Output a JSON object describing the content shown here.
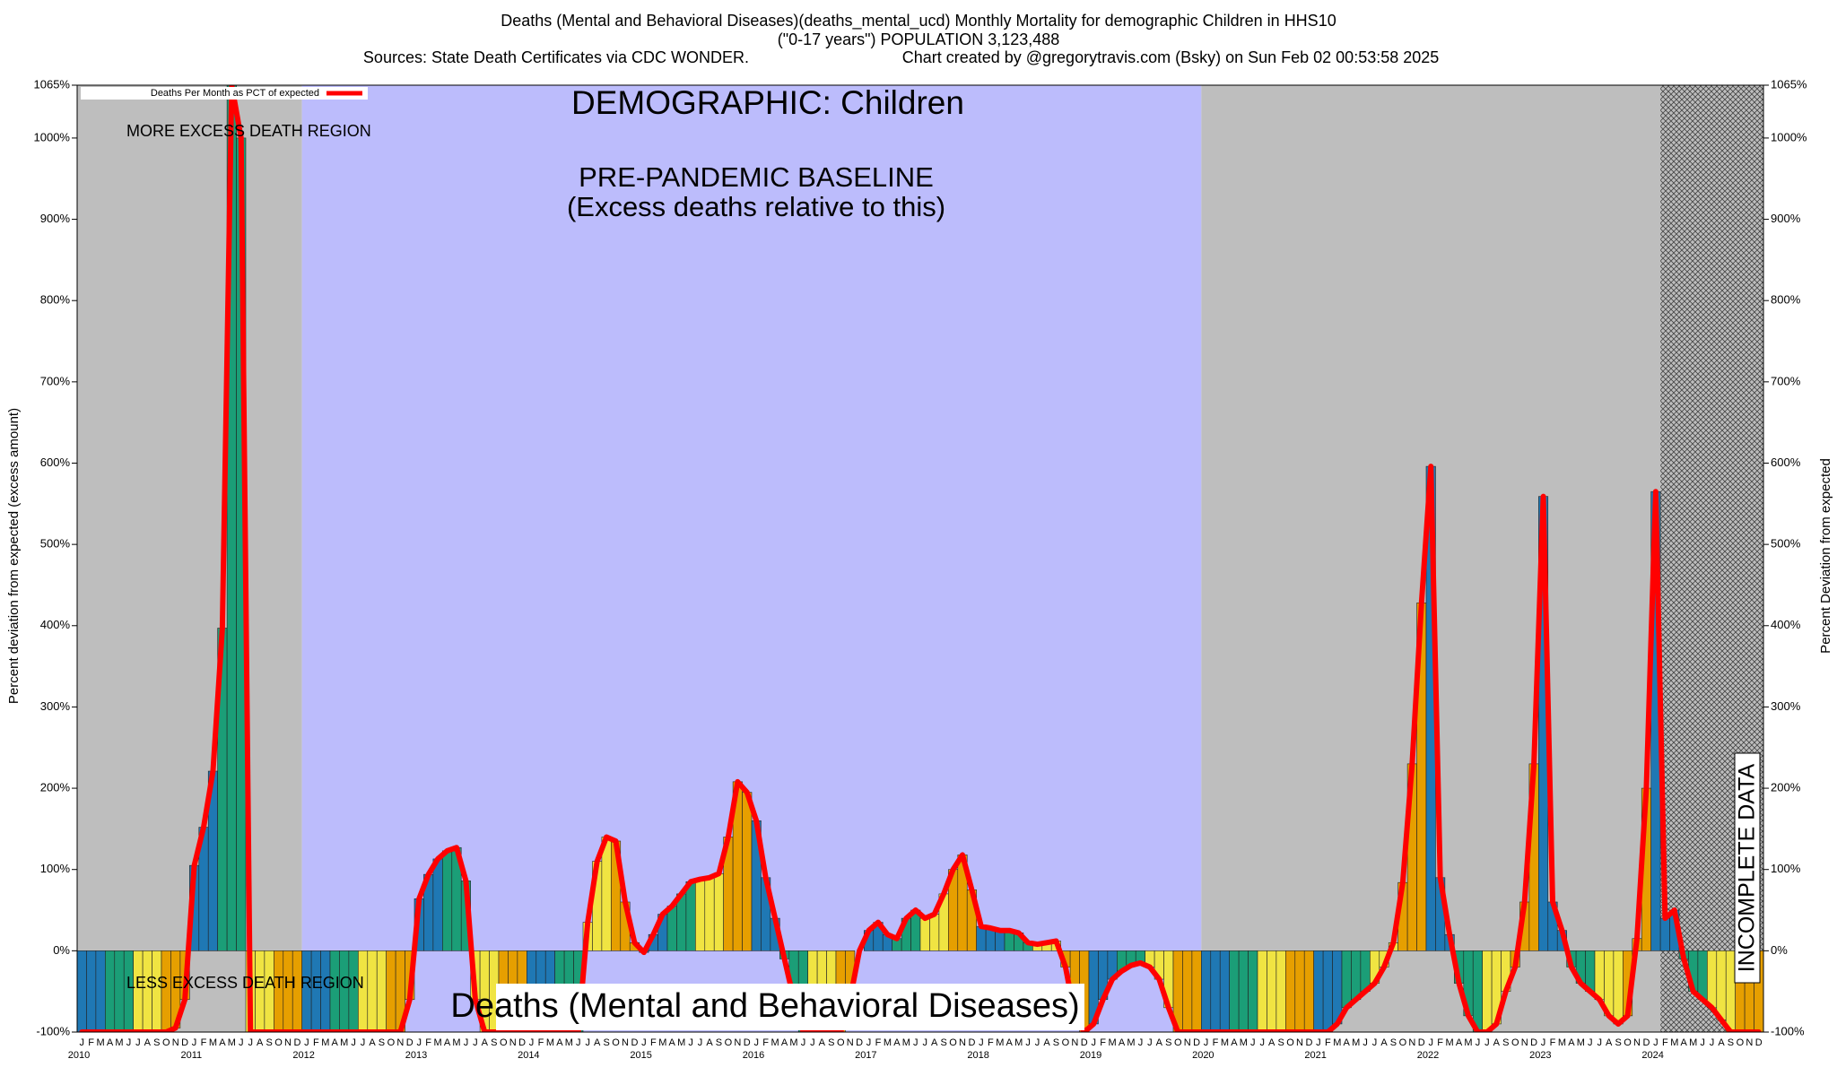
{
  "chart_data": {
    "type": "bar-line",
    "title": "Deaths (Mental and Behavioral Diseases)(deaths_mental_ucd) Monthly Mortality for demographic Children in HHS10",
    "subtitle": "(\"0-17 years\") POPULATION 3,123,488",
    "source": "Sources: State Death Certificates via CDC WONDER.",
    "credit": "Chart created by @gregorytravis.com (Bsky) on Sun Feb 02 00:53:58 2025",
    "y_label": "Percent deviation from expected (excess amount)",
    "y2_label": "Percent Deviation from expected",
    "annotations": {
      "demographic": "DEMOGRAPHIC: Children",
      "more": "MORE EXCESS DEATH REGION",
      "less": "LESS EXCESS DEATH REGION",
      "baseline": "PRE-PANDEMIC BASELINE",
      "baseline_note": "(Excess deaths relative to this)",
      "cause": "Deaths (Mental and Behavioral Diseases)",
      "incomplete": "INCOMPLETE DATA"
    },
    "categories": [
      "J",
      "F",
      "M",
      "A",
      "M",
      "J",
      "J",
      "A",
      "S",
      "O",
      "N",
      "D",
      "J",
      "F",
      "M",
      "A",
      "M",
      "J",
      "J",
      "A",
      "S",
      "O",
      "N",
      "D",
      "J",
      "F",
      "M",
      "A",
      "M",
      "J",
      "J",
      "A",
      "S",
      "O",
      "N",
      "D",
      "J",
      "F",
      "M",
      "A",
      "M",
      "J",
      "J",
      "A",
      "S",
      "O",
      "N",
      "D",
      "J",
      "F",
      "M",
      "A",
      "M",
      "J",
      "J",
      "A",
      "S",
      "O",
      "N",
      "D",
      "J",
      "F",
      "M",
      "A",
      "M",
      "J",
      "J",
      "A",
      "S",
      "O",
      "N",
      "D",
      "J",
      "F",
      "M",
      "A",
      "M",
      "J",
      "J",
      "A",
      "S",
      "O",
      "N",
      "D",
      "J",
      "F",
      "M",
      "A",
      "M",
      "J",
      "J",
      "A",
      "S",
      "O",
      "N",
      "D",
      "J",
      "F",
      "M",
      "A",
      "M",
      "J",
      "J",
      "A",
      "S",
      "O",
      "N",
      "D",
      "J",
      "F",
      "M",
      "A",
      "M",
      "J",
      "J",
      "A",
      "S",
      "O",
      "N",
      "D",
      "J",
      "F",
      "M",
      "A",
      "M",
      "J",
      "J",
      "A",
      "S",
      "O",
      "N",
      "D",
      "J",
      "F",
      "M",
      "A",
      "M",
      "J",
      "J",
      "A",
      "S",
      "O",
      "N",
      "D",
      "J",
      "F",
      "M",
      "A",
      "M",
      "J",
      "J",
      "A",
      "S",
      "O",
      "N",
      "D",
      "J",
      "F",
      "M",
      "A",
      "M",
      "J",
      "J",
      "A",
      "S",
      "O",
      "N",
      "D",
      "J",
      "F",
      "M",
      "A",
      "M",
      "J",
      "J",
      "A",
      "S",
      "O",
      "N",
      "D"
    ],
    "years": [
      "2010",
      "2011",
      "2012",
      "2013",
      "2014",
      "2015",
      "2016",
      "2017",
      "2018",
      "2019",
      "2020",
      "2021",
      "2022",
      "2023",
      "2024"
    ],
    "series": [
      {
        "name": "Deaths Per Month as PCT of expected",
        "color": "#ff0000",
        "values": [
          -100,
          -100,
          -100,
          -100,
          -100,
          -100,
          -100,
          -100,
          -100,
          -100,
          -95,
          -60,
          105,
          152,
          221,
          397,
          1065,
          1000,
          -100,
          -100,
          -100,
          -100,
          -100,
          -100,
          -100,
          -100,
          -100,
          -100,
          -100,
          -100,
          -100,
          -100,
          -100,
          -100,
          -100,
          -60,
          64,
          94,
          113,
          123,
          127,
          86,
          -60,
          -100,
          -100,
          -100,
          -100,
          -100,
          -100,
          -100,
          -100,
          -100,
          -100,
          -100,
          35,
          110,
          140,
          135,
          60,
          10,
          -2,
          20,
          45,
          55,
          70,
          85,
          88,
          90,
          95,
          140,
          208,
          195,
          160,
          90,
          40,
          -10,
          -60,
          -100,
          -100,
          -100,
          -100,
          -100,
          -60,
          0,
          25,
          35,
          20,
          15,
          40,
          50,
          40,
          45,
          70,
          100,
          118,
          75,
          30,
          28,
          25,
          25,
          22,
          10,
          8,
          10,
          12,
          -20,
          -80,
          -100,
          -90,
          -60,
          -35,
          -25,
          -18,
          -15,
          -20,
          -35,
          -70,
          -100,
          -100,
          -100,
          -100,
          -100,
          -100,
          -100,
          -100,
          -100,
          -100,
          -100,
          -100,
          -100,
          -100,
          -100,
          -100,
          -100,
          -90,
          -70,
          -60,
          -50,
          -40,
          -20,
          10,
          84,
          230,
          428,
          596,
          90,
          20,
          -40,
          -80,
          -100,
          -100,
          -90,
          -50,
          -20,
          60,
          230,
          559,
          60,
          25,
          -20,
          -40,
          -50,
          -60,
          -80,
          -90,
          -80,
          15,
          200,
          565,
          40,
          50,
          -10,
          -50,
          -60,
          -70,
          -85,
          -100,
          -100,
          -100,
          -100
        ]
      }
    ],
    "season_colors": [
      "#1f78b4",
      "#1b9e77",
      "#f0e442",
      "#e69f00"
    ],
    "ylim": [
      -100,
      1065
    ],
    "yticks": [
      {
        "value": -100,
        "label": "-100%"
      },
      {
        "value": 0,
        "label": "0%"
      },
      {
        "value": 100,
        "label": "100%"
      },
      {
        "value": 200,
        "label": "200%"
      },
      {
        "value": 300,
        "label": "300%"
      },
      {
        "value": 400,
        "label": "400%"
      },
      {
        "value": 500,
        "label": "500%"
      },
      {
        "value": 600,
        "label": "600%"
      },
      {
        "value": 700,
        "label": "700%"
      },
      {
        "value": 800,
        "label": "800%"
      },
      {
        "value": 900,
        "label": "900%"
      },
      {
        "value": 1000,
        "label": "1000%"
      },
      {
        "value": 1065,
        "label": "1065%"
      }
    ]
  }
}
